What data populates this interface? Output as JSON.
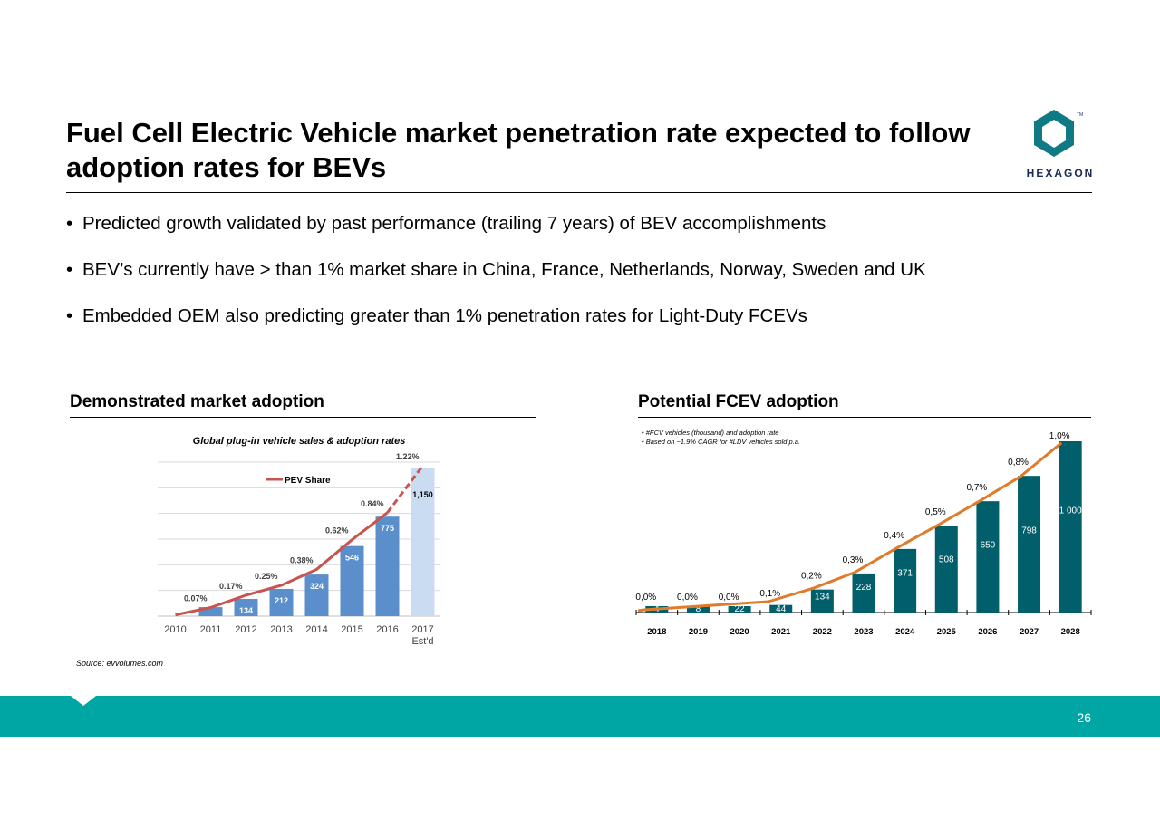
{
  "title": "Fuel Cell Electric Vehicle market penetration rate expected to follow adoption rates for BEVs",
  "logo": {
    "icon": "hexagon-logo-icon",
    "text": "HEXAGON",
    "color": "#0f7a84"
  },
  "bullets": [
    "Predicted growth validated by past performance (trailing 7 years) of BEV accomplishments",
    "BEV’s currently have > than 1% market share in China, France, Netherlands, Norway, Sweden and UK",
    "Embedded OEM also predicting greater than 1% penetration rates for Light-Duty FCEVs"
  ],
  "left_section": {
    "heading": "Demonstrated market adoption"
  },
  "right_section": {
    "heading": "Potential FCEV adoption"
  },
  "source": "Source: evvolumes.com",
  "footer": {
    "page_number": "26",
    "band_color": "#00a6a3"
  },
  "chart_data": [
    {
      "type": "bar",
      "title": "Global plug-in vehicle sales & adoption rates",
      "categories": [
        "2010",
        "2011",
        "2012",
        "2013",
        "2014",
        "2015",
        "2016",
        "2017"
      ],
      "category_sublabels": [
        "",
        "",
        "",
        "",
        "",
        "",
        "",
        "Est'd"
      ],
      "values": [
        null,
        70,
        134,
        212,
        324,
        546,
        775,
        1150
      ],
      "value_labels": [
        "",
        "",
        "134",
        "212",
        "324",
        "546",
        "775",
        "1,150"
      ],
      "line_series": {
        "name": "PEV Share",
        "values": [
          0.01,
          0.07,
          0.17,
          0.25,
          0.38,
          0.62,
          0.84,
          1.22
        ],
        "labels": [
          "",
          "0.07%",
          "0.17%",
          "0.25%",
          "0.38%",
          "0.62%",
          "0.84%",
          "1.22%"
        ]
      },
      "legend": "PEV Share",
      "legend_position": "top-center",
      "ylim": [
        0,
        1200
      ],
      "line_ylim": [
        0,
        1.25
      ],
      "gridlines": true,
      "colors": {
        "bar": "#5b8fcb",
        "bar_estimate": "#c9dcf1",
        "line": "#c9534d"
      }
    },
    {
      "type": "bar",
      "notes": [
        "#FCV vehicles (thousand) and adoption rate",
        "Based on ~1.9% CAGR for #LDV vehicles sold p.a."
      ],
      "categories": [
        "2018",
        "2019",
        "2020",
        "2021",
        "2022",
        "2023",
        "2024",
        "2025",
        "2026",
        "2027",
        "2028"
      ],
      "values": [
        4,
        8,
        22,
        44,
        134,
        228,
        371,
        508,
        650,
        798,
        1000
      ],
      "value_labels": [
        "4",
        "8",
        "22",
        "44",
        "134",
        "228",
        "371",
        "508",
        "650",
        "798",
        "1 000"
      ],
      "line_series": {
        "name": "Adoption rate",
        "values": [
          0.0,
          0.0,
          0.0,
          0.1,
          0.2,
          0.3,
          0.4,
          0.5,
          0.7,
          0.8,
          1.0
        ],
        "labels": [
          "0,0%",
          "0,0%",
          "0,0%",
          "0,1%",
          "0,2%",
          "0,3%",
          "0,4%",
          "0,5%",
          "0,7%",
          "0,8%",
          "1,0%"
        ]
      },
      "ylim": [
        0,
        1000
      ],
      "gridlines": false,
      "colors": {
        "bar": "#005f6b",
        "line": "#e07b2a"
      }
    }
  ]
}
